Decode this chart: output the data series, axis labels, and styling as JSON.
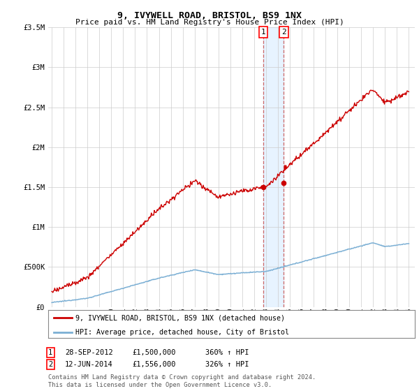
{
  "title": "9, IVYWELL ROAD, BRISTOL, BS9 1NX",
  "subtitle": "Price paid vs. HM Land Registry's House Price Index (HPI)",
  "ylim": [
    0,
    3500000
  ],
  "yticks": [
    0,
    500000,
    1000000,
    1500000,
    2000000,
    2500000,
    3000000,
    3500000
  ],
  "ytick_labels": [
    "£0",
    "£500K",
    "£1M",
    "£1.5M",
    "£2M",
    "£2.5M",
    "£3M",
    "£3.5M"
  ],
  "hpi_color": "#7bafd4",
  "price_color": "#cc0000",
  "sale1_year": 2012.75,
  "sale1_price": 1500000,
  "sale1_date": "28-SEP-2012",
  "sale1_pct": "360%",
  "sale2_year": 2014.5,
  "sale2_price": 1556000,
  "sale2_date": "12-JUN-2014",
  "sale2_pct": "326%",
  "legend_label_price": "9, IVYWELL ROAD, BRISTOL, BS9 1NX (detached house)",
  "legend_label_hpi": "HPI: Average price, detached house, City of Bristol",
  "footer": "Contains HM Land Registry data © Crown copyright and database right 2024.\nThis data is licensed under the Open Government Licence v3.0.",
  "background_color": "#ffffff",
  "grid_color": "#cccccc"
}
